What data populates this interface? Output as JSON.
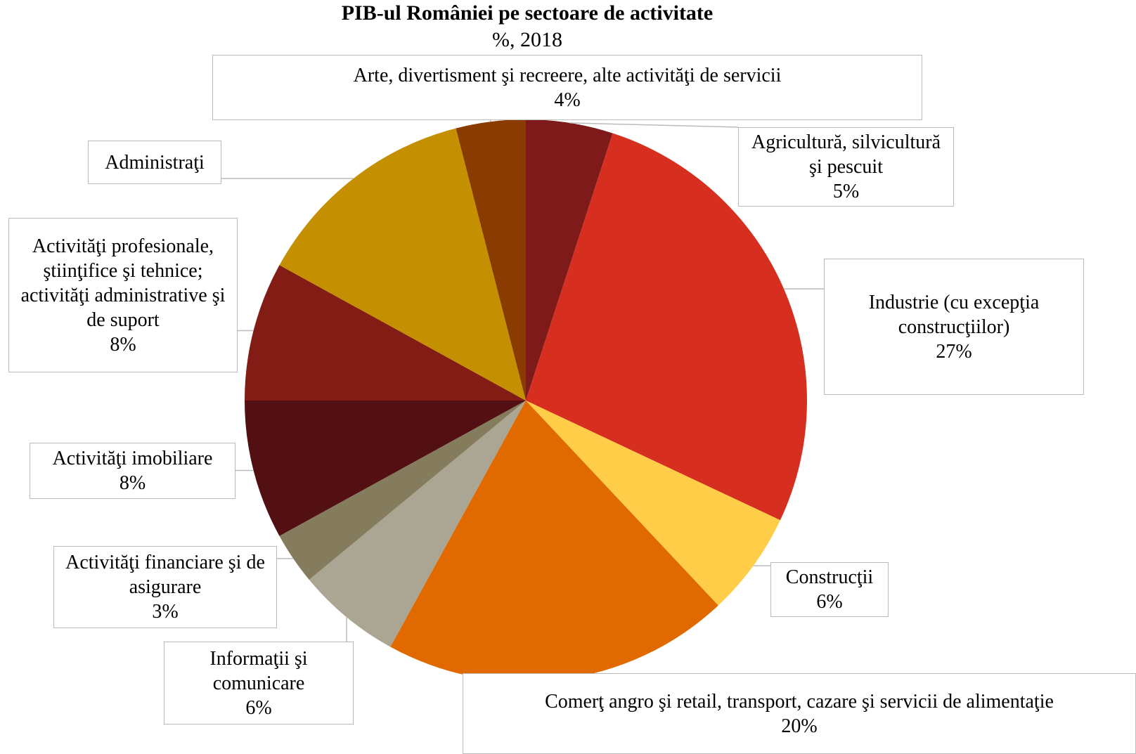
{
  "chart_data": {
    "type": "pie",
    "title": "PIB-ul României pe sectoare de activitate",
    "subtitle": "%, 2018",
    "categories": [
      "Agricultură, silvicultură şi pescuit",
      "Industrie (cu excepţia construcţiilor)",
      "Construcţii",
      "Comerţ angro şi retail, transport, cazare şi servicii de alimentaţie",
      "Informaţii şi comunicare",
      "Activităţi financiare şi de asigurare",
      "Activităţi imobiliare",
      "Activităţi profesionale, ştiinţifice şi tehnice; activităţi administrative şi de suport",
      "Administraţi",
      "Arte, divertisment şi recreere, alte activităţi de servicii"
    ],
    "values": [
      5,
      27,
      6,
      20,
      6,
      3,
      8,
      8,
      13,
      4
    ],
    "value_labels": [
      "5%",
      "27%",
      "6%",
      "20%",
      "6%",
      "3%",
      "8%",
      "8%",
      null,
      "4%"
    ],
    "colors": [
      "#7f1a1a",
      "#d62f1f",
      "#ffcd48",
      "#e06a00",
      "#aba593",
      "#857c5e",
      "#521012",
      "#841c16",
      "#c48f00",
      "#8a3c00"
    ]
  }
}
